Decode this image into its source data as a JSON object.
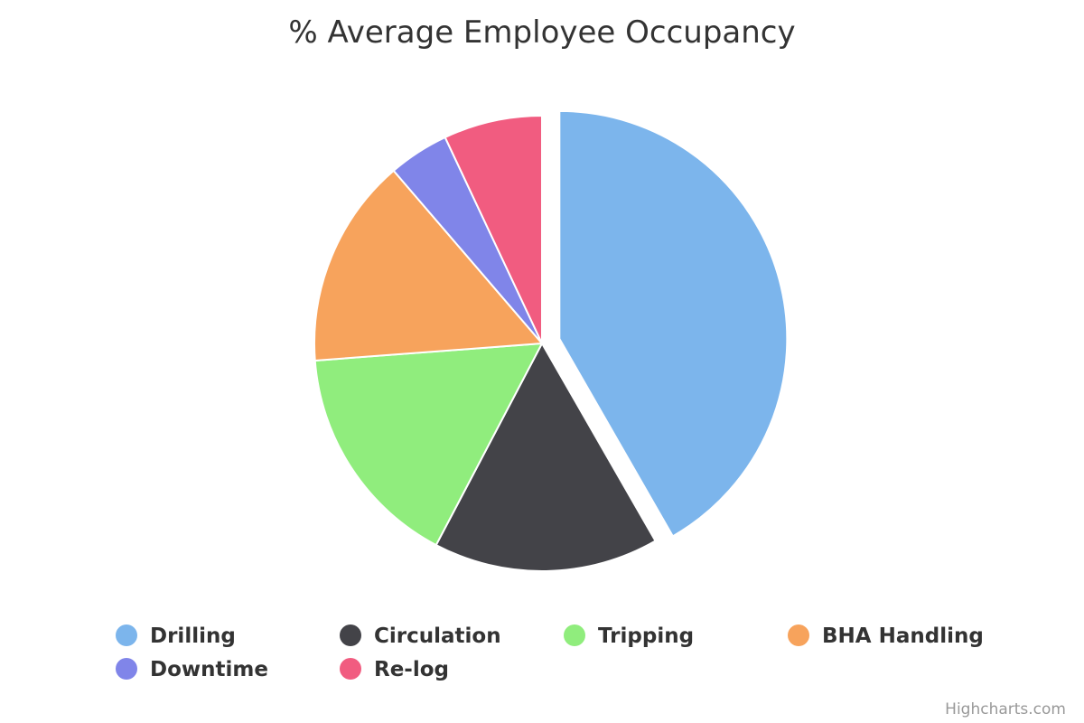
{
  "chart_data": {
    "type": "pie",
    "title": "% Average Employee Occupancy",
    "categories": [
      "Drilling",
      "Circulation",
      "Tripping",
      "BHA Handling",
      "Downtime",
      "Re-log"
    ],
    "values": [
      41.7,
      16.0,
      16.1,
      14.9,
      4.3,
      7.0
    ],
    "colors": [
      "#7cb5ec",
      "#434348",
      "#90ed7d",
      "#f7a35c",
      "#8085e9",
      "#f15c80"
    ],
    "sliced": [
      "Drilling"
    ],
    "legend_position": "bottom"
  },
  "credits": "Highcharts.com"
}
